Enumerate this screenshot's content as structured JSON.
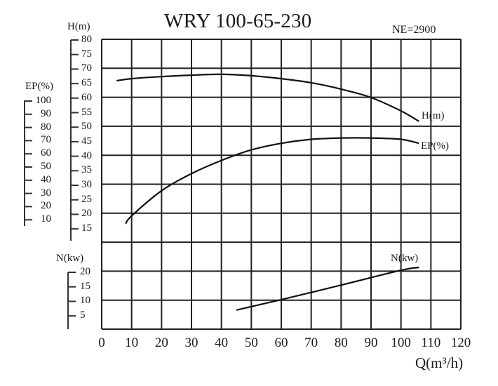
{
  "header": {
    "title": "WRY 100-65-230",
    "speed_label": "NE=2900"
  },
  "axes": {
    "h": {
      "title": "H(m)",
      "ticks": [
        "80",
        "75",
        "70",
        "65",
        "60",
        "55",
        "50",
        "45",
        "40",
        "35",
        "30",
        "25",
        "20",
        "15"
      ]
    },
    "ep": {
      "title": "EP(%)",
      "ticks": [
        "100",
        "90",
        "80",
        "70",
        "60",
        "50",
        "40",
        "30",
        "20",
        "10"
      ]
    },
    "n": {
      "title": "N(kw)",
      "ticks": [
        "20",
        "15",
        "10",
        "5"
      ]
    },
    "x": {
      "title": "Q(m³/h)",
      "ticks": [
        "0",
        "10",
        "20",
        "30",
        "40",
        "50",
        "60",
        "70",
        "80",
        "90",
        "100",
        "110",
        "120"
      ]
    }
  },
  "curve_labels": {
    "h": "H(m)",
    "ep": "EP(%)",
    "n": "N(kw)"
  },
  "colors": {
    "line": "#1a1a1a",
    "grid": "#222222",
    "background": "#ffffff"
  },
  "chart_data": {
    "type": "line",
    "title": "WRY 100-65-230",
    "subtitle": "NE=2900",
    "xlabel": "Q(m³/h)",
    "xlim": [
      0,
      120
    ],
    "x_ticks": [
      0,
      10,
      20,
      30,
      40,
      50,
      60,
      70,
      80,
      90,
      100,
      110,
      120
    ],
    "grid": true,
    "y_axes": [
      {
        "name": "H(m)",
        "range": [
          15,
          80
        ],
        "ticks": [
          80,
          75,
          70,
          65,
          60,
          55,
          50,
          45,
          40,
          35,
          30,
          25,
          20,
          15
        ]
      },
      {
        "name": "EP(%)",
        "range": [
          10,
          100
        ],
        "ticks": [
          100,
          90,
          80,
          70,
          60,
          50,
          40,
          30,
          20,
          10
        ]
      },
      {
        "name": "N(kw)",
        "range": [
          5,
          20
        ],
        "ticks": [
          20,
          15,
          10,
          5
        ]
      }
    ],
    "series": [
      {
        "name": "H(m)",
        "axis": "H(m)",
        "x": [
          5,
          10,
          20,
          30,
          40,
          50,
          60,
          70,
          80,
          90,
          100,
          106
        ],
        "values": [
          66.0,
          66.7,
          67.4,
          67.9,
          68.2,
          67.7,
          66.7,
          65.3,
          63.1,
          60.2,
          55.6,
          52.0
        ]
      },
      {
        "name": "EP(%)",
        "axis": "EP(%)",
        "x": [
          8,
          10,
          20,
          30,
          40,
          50,
          60,
          70,
          80,
          90,
          100,
          106
        ],
        "values": [
          7,
          13,
          32,
          45,
          55,
          63,
          68,
          71,
          72,
          72,
          71,
          68
        ]
      },
      {
        "name": "N(kw)",
        "axis": "N(kw)",
        "x": [
          45,
          60,
          80,
          100,
          106
        ],
        "values": [
          7.0,
          10.6,
          15.6,
          20.7,
          21.7
        ]
      }
    ]
  }
}
